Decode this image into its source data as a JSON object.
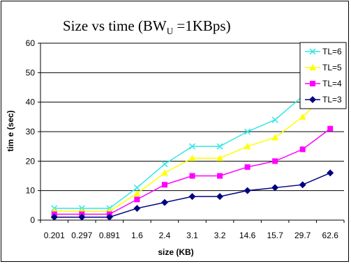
{
  "chart_data": {
    "type": "line",
    "title": {
      "main": "Size vs time (BW",
      "sub": "U",
      "rest": " =1KBps)"
    },
    "xlabel": "size (KB)",
    "ylabel": "tim e (sec)",
    "categories": [
      "0.201",
      "0.297",
      "0.891",
      "1.6",
      "2.4",
      "3.1",
      "3.2",
      "14.6",
      "15.7",
      "29.7",
      "62.6"
    ],
    "ylim": [
      0,
      60
    ],
    "yticks": [
      "0",
      "10",
      "20",
      "30",
      "40",
      "50",
      "60"
    ],
    "grid": true,
    "legend_position": "top-right",
    "series": [
      {
        "name": "TL=6",
        "color": "#33E6E6",
        "marker": "x",
        "values": [
          4,
          4,
          4,
          11,
          19,
          25,
          25,
          30,
          34,
          42,
          48
        ]
      },
      {
        "name": "TL=5",
        "color": "#FFFF00",
        "marker": "triangle",
        "values": [
          3,
          3,
          3,
          9,
          16,
          21,
          21,
          25,
          28,
          35,
          44
        ]
      },
      {
        "name": "TL=4",
        "color": "#FF00FF",
        "marker": "square",
        "values": [
          2,
          2,
          2,
          7,
          12,
          15,
          15,
          18,
          20,
          24,
          31
        ]
      },
      {
        "name": "TL=3",
        "color": "#000080",
        "marker": "diamond",
        "values": [
          1,
          1,
          1,
          4,
          6,
          8,
          8,
          10,
          11,
          12,
          16
        ]
      }
    ]
  }
}
